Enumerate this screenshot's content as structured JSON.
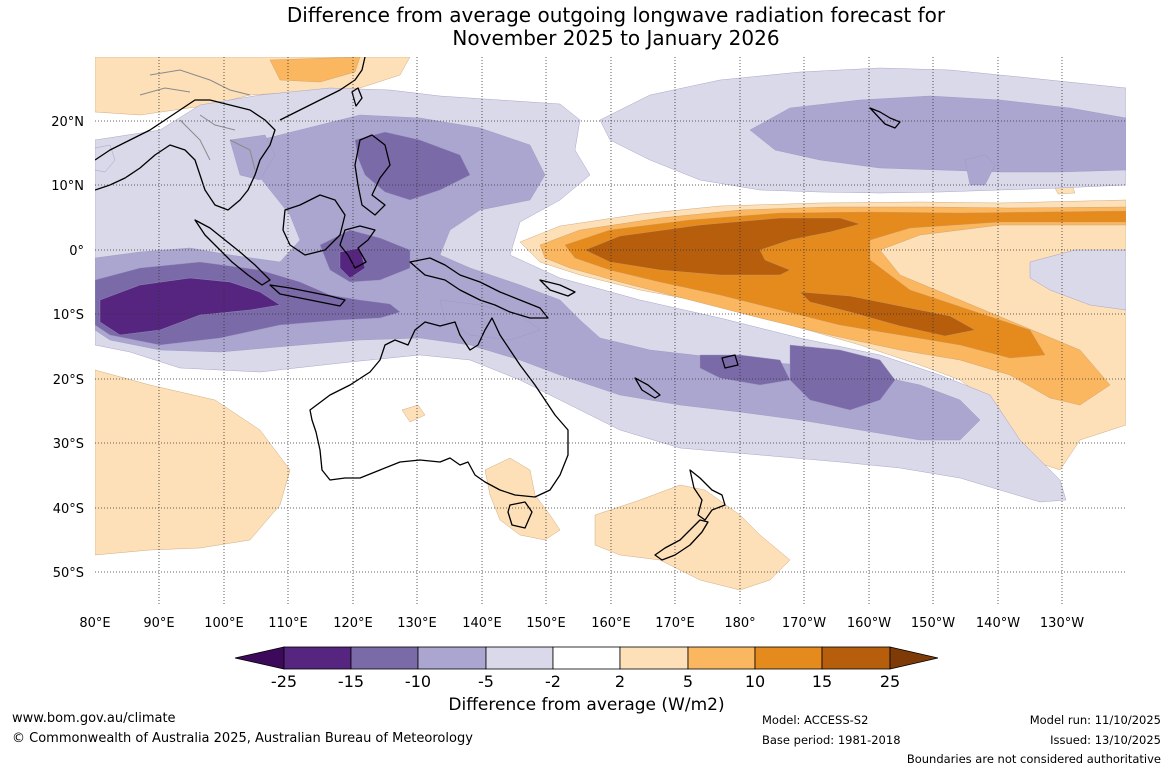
{
  "title": {
    "line1": "Difference from average outgoing longwave radiation forecast for",
    "line2": "November 2025 to January 2026"
  },
  "axes": {
    "longitude_labels": [
      "80°E",
      "90°E",
      "100°E",
      "110°E",
      "120°E",
      "130°E",
      "140°E",
      "150°E",
      "160°E",
      "170°E",
      "180°",
      "170°W",
      "160°W",
      "150°W",
      "140°W",
      "130°W"
    ],
    "latitude_labels": [
      "20°N",
      "10°N",
      "0°",
      "10°S",
      "20°S",
      "30°S",
      "40°S",
      "50°S"
    ]
  },
  "colorbar": {
    "title": "Difference from average (W/m2)",
    "tick_labels": [
      "-25",
      "-15",
      "-10",
      "-5",
      "-2",
      "2",
      "5",
      "10",
      "15",
      "25"
    ],
    "colors": [
      "#3d0a5b",
      "#55257f",
      "#7b6aa8",
      "#aba6cf",
      "#d9d9ea",
      "#ffffff",
      "#fde0b8",
      "#fbb760",
      "#e58a1c",
      "#b65e0c",
      "#7e3b08"
    ]
  },
  "footer": {
    "website": "www.bom.gov.au/climate",
    "copyright": "© Commonwealth of Australia 2025, Australian Bureau of Meteorology",
    "model": "Model: ACCESS-S2",
    "base_period": "Base period: 1981-2018",
    "model_run": "Model run: 11/10/2025",
    "issued": "Issued: 13/10/2025",
    "disclaimer": "Boundaries are not considered authoritative"
  }
}
